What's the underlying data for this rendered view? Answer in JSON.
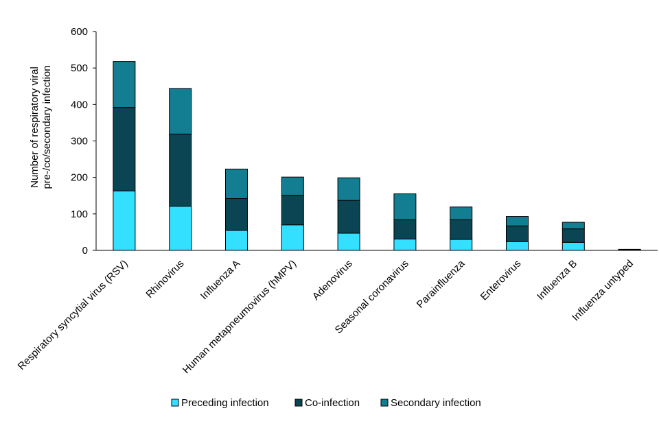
{
  "chart_data": {
    "type": "bar",
    "stacked": true,
    "title": "",
    "xlabel": "",
    "ylabel": [
      "Number of respiratory viral",
      "pre-/co/secondary infection"
    ],
    "ylim": [
      0,
      600
    ],
    "yticks": [
      0,
      100,
      200,
      300,
      400,
      500,
      600
    ],
    "grid": false,
    "legend_position": "bottom",
    "categories": [
      "Respiratory syncytial virus (RSV)",
      "Rhinovirus",
      "Influenza A",
      "Human metapneumovirus (hMPV)",
      "Adenovirus",
      "Seasonal coronavirus",
      "Parainfluenza",
      "Enterovirus",
      "Influenza B",
      "Influenza untyped"
    ],
    "series": [
      {
        "name": "Preceding infection",
        "color": "#33e0ff",
        "values": [
          163,
          121,
          55,
          70,
          47,
          31,
          30,
          24,
          22,
          1
        ]
      },
      {
        "name": "Co-infection",
        "color": "#0b4452",
        "values": [
          229,
          198,
          87,
          81,
          90,
          53,
          54,
          43,
          37,
          1
        ]
      },
      {
        "name": "Secondary infection",
        "color": "#137e91",
        "values": [
          126,
          125,
          81,
          50,
          62,
          71,
          35,
          26,
          18,
          1
        ]
      }
    ]
  }
}
